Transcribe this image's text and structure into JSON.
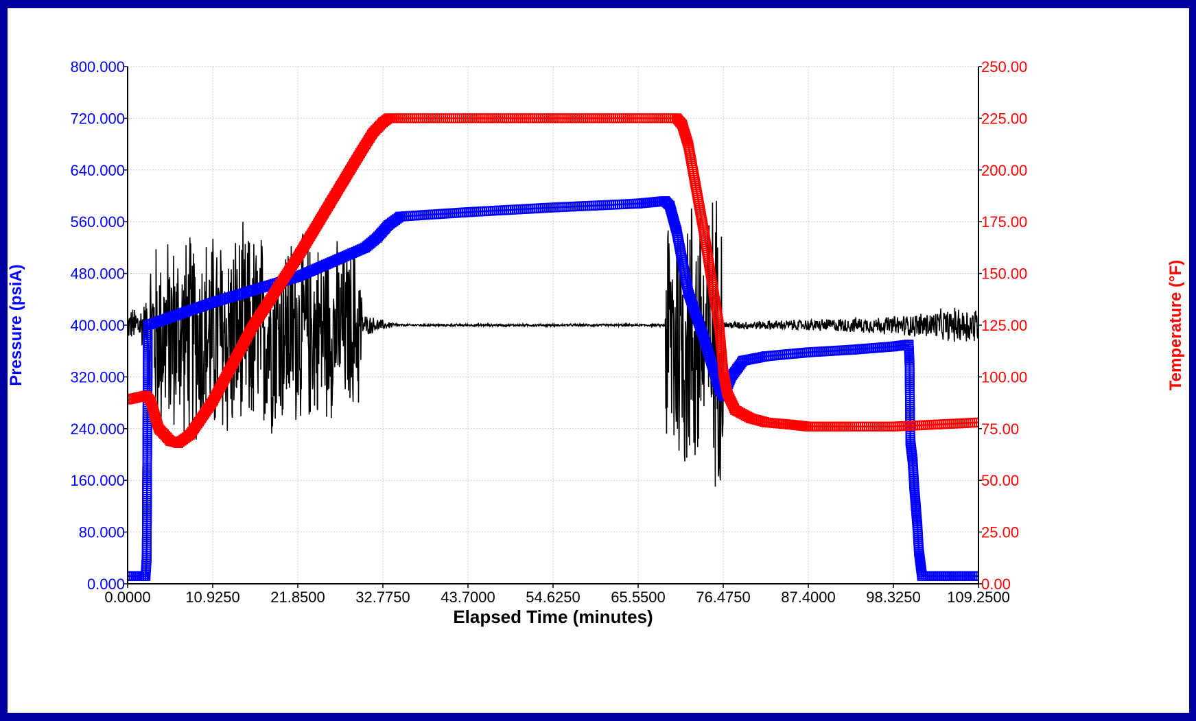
{
  "chart_data": {
    "type": "line",
    "title": "",
    "xlabel": "Elapsed Time (minutes)",
    "ylabel_left": "Pressure (psiA)",
    "ylabel_right": "Temperature (°F)",
    "xlim": [
      0,
      109.25
    ],
    "ylim_left": [
      0,
      800
    ],
    "ylim_right": [
      0,
      250
    ],
    "x_ticks": [
      "0.0000",
      "10.9250",
      "21.8500",
      "32.7750",
      "43.7000",
      "54.6250",
      "65.5500",
      "76.4750",
      "87.4000",
      "98.3250",
      "109.2500"
    ],
    "y_left_ticks": [
      "0.000",
      "80.000",
      "160.000",
      "240.000",
      "320.000",
      "400.000",
      "480.000",
      "560.000",
      "640.000",
      "720.000",
      "800.000"
    ],
    "y_right_ticks": [
      "0.00",
      "25.00",
      "50.00",
      "75.00",
      "100.00",
      "125.00",
      "150.00",
      "175.00",
      "200.00",
      "225.00",
      "250.00"
    ],
    "grid": true,
    "series": [
      {
        "axis": "left",
        "color": "#0000ff",
        "marker": "square",
        "x": [
          0,
          1.0,
          2.0,
          2.3,
          2.45,
          2.6,
          10.9,
          21.85,
          30.5,
          32.0,
          33.5,
          35.0,
          44.0,
          54.6,
          65.5,
          69.0,
          69.6,
          70.5,
          72.0,
          74.0,
          76.0,
          76.5,
          77.5,
          79.0,
          82.0,
          87.4,
          93.0,
          98.3,
          100.3,
          100.4,
          100.5,
          100.8,
          101.0,
          101.2,
          101.4,
          101.6,
          102.0,
          105.0,
          109.25
        ],
        "y": [
          12,
          12,
          12,
          12,
          40,
          400,
          435,
          475,
          520,
          535,
          555,
          568,
          575,
          582,
          588,
          592,
          585,
          545,
          450,
          380,
          300,
          290,
          320,
          345,
          352,
          358,
          362,
          367,
          370,
          340,
          220,
          190,
          150,
          120,
          90,
          50,
          12,
          12,
          12
        ]
      },
      {
        "axis": "right",
        "color": "#ff0000",
        "marker": "square",
        "x": [
          0,
          2.4,
          3.0,
          4.0,
          5.5,
          6.5,
          8.0,
          10.9,
          16.0,
          21.85,
          26.0,
          30.0,
          31.5,
          32.77,
          33.5,
          35.0,
          43.7,
          54.6,
          65.5,
          70.5,
          71.2,
          72.0,
          74.0,
          76.0,
          76.5,
          77.0,
          78.0,
          80.0,
          82.0,
          85.0,
          87.4,
          92.0,
          98.3,
          104.0,
          109.25
        ],
        "y": [
          89,
          91,
          88,
          75,
          69,
          68,
          72,
          88,
          124,
          158,
          184,
          209,
          218,
          223,
          225,
          225,
          225,
          225,
          225,
          225,
          222,
          212,
          170,
          123,
          102,
          92,
          84,
          80,
          78,
          77,
          76,
          76,
          76,
          77,
          78
        ]
      },
      {
        "axis": "left",
        "color": "#000000",
        "marker": "none",
        "style": "noise",
        "x": [
          0,
          2.4,
          2.5,
          12.0,
          20.0,
          30.0,
          30.1,
          33.0,
          35.0,
          43.7,
          54.6,
          65.5,
          69.0,
          69.1,
          73.0,
          76.5,
          76.6,
          87.4,
          98.3,
          109.25
        ],
        "y": [
          400,
          400,
          385,
          380,
          390,
          395,
          400,
          400,
          400,
          400,
          400,
          400,
          400,
          385,
          380,
          382,
          400,
          400,
          400,
          400
        ],
        "amplitude": [
          25,
          45,
          160,
          190,
          170,
          140,
          20,
          8,
          2,
          2,
          2,
          2,
          2,
          240,
          260,
          250,
          6,
          10,
          16,
          35
        ]
      }
    ]
  }
}
